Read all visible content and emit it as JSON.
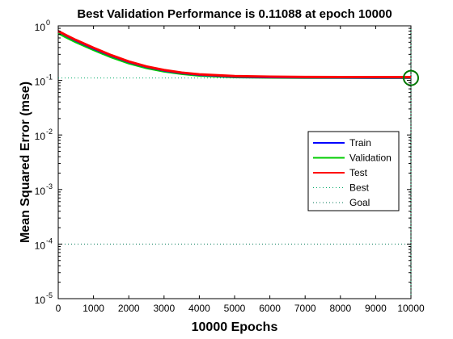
{
  "chart_data": {
    "type": "line",
    "title": "Best Validation Performance is 0.11088 at epoch 10000",
    "xlabel": "10000 Epochs",
    "ylabel": "Mean Squared Error  (mse)",
    "xlim": [
      0,
      10000
    ],
    "ylim": [
      1e-05,
      1
    ],
    "yscale": "log",
    "grid": false,
    "legend_position": "center-right",
    "x_ticks": [
      0,
      1000,
      2000,
      3000,
      4000,
      5000,
      6000,
      7000,
      8000,
      9000,
      10000
    ],
    "x_tick_labels": [
      "0",
      "1000",
      "2000",
      "3000",
      "4000",
      "5000",
      "6000",
      "7000",
      "8000",
      "9000",
      "10000"
    ],
    "y_ticks": [
      1e-05,
      0.0001,
      0.001,
      0.01,
      0.1,
      1
    ],
    "y_tick_bases": [
      "10",
      "10",
      "10",
      "10",
      "10",
      "10"
    ],
    "y_tick_exponents": [
      "-5",
      "-4",
      "-3",
      "-2",
      "-1",
      "0"
    ],
    "series": [
      {
        "name": "Train",
        "color": "#0000ff",
        "style": "solid",
        "x": [
          0,
          250,
          500,
          1000,
          1500,
          2000,
          2500,
          3000,
          3500,
          4000,
          5000,
          6000,
          7000,
          8000,
          9000,
          10000
        ],
        "y": [
          0.78,
          0.64,
          0.53,
          0.38,
          0.28,
          0.215,
          0.175,
          0.15,
          0.135,
          0.125,
          0.116,
          0.113,
          0.112,
          0.1115,
          0.1112,
          0.111
        ]
      },
      {
        "name": "Validation",
        "color": "#00cc00",
        "style": "solid",
        "x": [
          0,
          250,
          500,
          1000,
          1500,
          2000,
          2500,
          3000,
          3500,
          4000,
          5000,
          6000,
          7000,
          8000,
          9000,
          10000
        ],
        "y": [
          0.73,
          0.6,
          0.5,
          0.36,
          0.265,
          0.205,
          0.168,
          0.145,
          0.131,
          0.122,
          0.114,
          0.112,
          0.111,
          0.1109,
          0.11088,
          0.11088
        ]
      },
      {
        "name": "Test",
        "color": "#ff0000",
        "style": "solid",
        "x": [
          0,
          250,
          500,
          1000,
          1500,
          2000,
          2500,
          3000,
          3500,
          4000,
          5000,
          6000,
          7000,
          8000,
          9000,
          10000
        ],
        "y": [
          0.8,
          0.66,
          0.55,
          0.395,
          0.29,
          0.222,
          0.18,
          0.155,
          0.139,
          0.129,
          0.12,
          0.117,
          0.1155,
          0.115,
          0.1148,
          0.1145
        ]
      }
    ],
    "best": {
      "name": "Best",
      "color": "#00aa66",
      "style": "dotted",
      "epoch": 10000,
      "value": 0.11088
    },
    "goal": {
      "name": "Goal",
      "color": "#007755",
      "style": "dotted",
      "value": 0.0001
    },
    "marker": {
      "x": 10000,
      "y": 0.11088,
      "color": "#007700"
    }
  }
}
